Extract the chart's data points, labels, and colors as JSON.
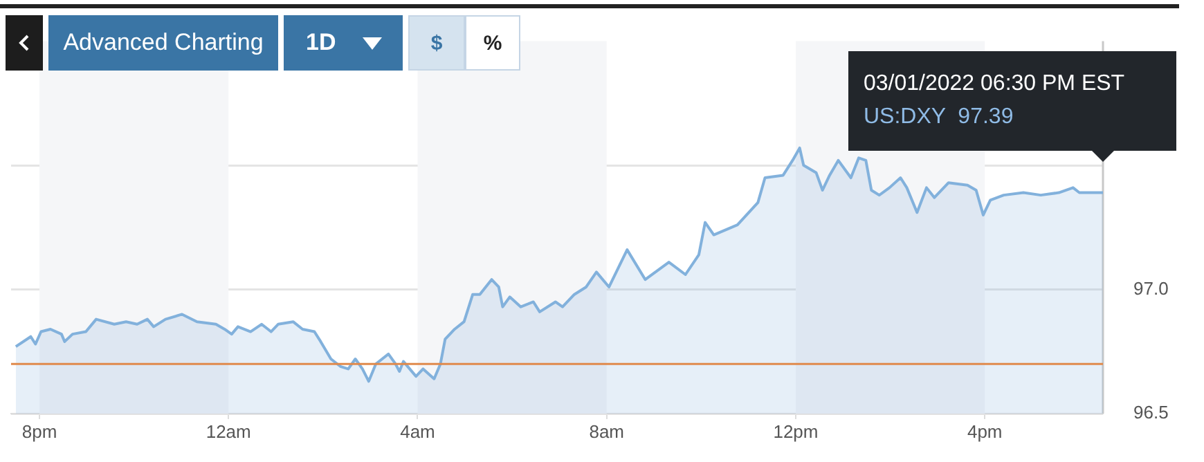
{
  "chart_data": {
    "type": "area",
    "x": [
      "2022-02-28T19:30",
      "2022-02-28T19:49",
      "2022-02-28T19:55",
      "2022-02-28T20:02",
      "2022-02-28T20:14",
      "2022-02-28T20:28",
      "2022-02-28T20:32",
      "2022-02-28T20:42",
      "2022-02-28T20:59",
      "2022-02-28T21:12",
      "2022-02-28T21:35",
      "2022-02-28T21:50",
      "2022-02-28T22:04",
      "2022-02-28T22:17",
      "2022-02-28T22:25",
      "2022-02-28T22:40",
      "2022-02-28T23:01",
      "2022-02-28T23:20",
      "2022-02-28T23:44",
      "2022-02-28T23:55",
      "2022-03-01T00:04",
      "2022-03-01T00:12",
      "2022-03-01T00:28",
      "2022-03-01T00:42",
      "2022-03-01T00:54",
      "2022-03-01T01:03",
      "2022-03-01T01:22",
      "2022-03-01T01:34",
      "2022-03-01T01:49",
      "2022-03-01T01:57",
      "2022-03-01T02:10",
      "2022-03-01T02:22",
      "2022-03-01T02:32",
      "2022-03-01T02:41",
      "2022-03-01T02:50",
      "2022-03-01T02:58",
      "2022-03-01T03:07",
      "2022-03-01T03:23",
      "2022-03-01T03:32",
      "2022-03-01T03:37",
      "2022-03-01T03:42",
      "2022-03-01T03:58",
      "2022-03-01T04:07",
      "2022-03-01T04:21",
      "2022-03-01T04:29",
      "2022-03-01T04:35",
      "2022-03-01T04:47",
      "2022-03-01T04:59",
      "2022-03-01T05:10",
      "2022-03-01T05:19",
      "2022-03-01T05:34",
      "2022-03-01T05:43",
      "2022-03-01T05:48",
      "2022-03-01T05:57",
      "2022-03-01T06:11",
      "2022-03-01T06:27",
      "2022-03-01T06:35",
      "2022-03-01T06:55",
      "2022-03-01T07:04",
      "2022-03-01T07:19",
      "2022-03-01T07:34",
      "2022-03-01T07:47",
      "2022-03-01T08:03",
      "2022-03-01T08:26",
      "2022-03-01T08:49",
      "2022-03-01T09:19",
      "2022-03-01T09:40",
      "2022-03-01T09:57",
      "2022-03-01T10:05",
      "2022-03-01T10:16",
      "2022-03-01T10:46",
      "2022-03-01T11:12",
      "2022-03-01T11:21",
      "2022-03-01T11:44",
      "2022-03-01T11:56",
      "2022-03-01T12:05",
      "2022-03-01T12:10",
      "2022-03-01T12:26",
      "2022-03-01T12:34",
      "2022-03-01T12:43",
      "2022-03-01T12:54",
      "2022-03-01T13:10",
      "2022-03-01T13:20",
      "2022-03-01T13:29",
      "2022-03-01T13:36",
      "2022-03-01T13:46",
      "2022-03-01T13:59",
      "2022-03-01T14:13",
      "2022-03-01T14:21",
      "2022-03-01T14:34",
      "2022-03-01T14:46",
      "2022-03-01T14:56",
      "2022-03-01T15:14",
      "2022-03-01T15:38",
      "2022-03-01T15:49",
      "2022-03-01T15:58",
      "2022-03-01T16:07",
      "2022-03-01T16:24",
      "2022-03-01T16:49",
      "2022-03-01T17:11",
      "2022-03-01T17:34",
      "2022-03-01T17:52",
      "2022-03-01T18:00",
      "2022-03-01T18:30"
    ],
    "series": [
      {
        "color": "#82b1dc",
        "values": [
          96.77,
          96.81,
          96.78,
          96.83,
          96.84,
          96.82,
          96.79,
          96.82,
          96.83,
          96.88,
          96.86,
          96.87,
          96.86,
          96.88,
          96.85,
          96.88,
          96.9,
          96.87,
          96.86,
          96.84,
          96.82,
          96.85,
          96.83,
          96.86,
          96.83,
          96.86,
          96.87,
          96.84,
          96.83,
          96.79,
          96.72,
          96.69,
          96.68,
          96.72,
          96.68,
          96.63,
          96.7,
          96.74,
          96.7,
          96.67,
          96.71,
          96.65,
          96.68,
          96.64,
          96.7,
          96.8,
          96.84,
          96.87,
          96.98,
          96.98,
          97.04,
          97.01,
          96.93,
          96.97,
          96.93,
          96.95,
          96.91,
          96.95,
          96.93,
          96.98,
          97.01,
          97.07,
          97.01,
          97.16,
          97.04,
          97.11,
          97.06,
          97.14,
          97.27,
          97.22,
          97.26,
          97.35,
          97.45,
          97.46,
          97.52,
          97.57,
          97.5,
          97.47,
          97.4,
          97.46,
          97.52,
          97.45,
          97.53,
          97.52,
          97.4,
          97.38,
          97.41,
          97.45,
          97.41,
          97.31,
          97.41,
          97.37,
          97.43,
          97.42,
          97.4,
          97.3,
          97.36,
          97.38,
          97.39,
          97.38,
          97.39,
          97.41,
          97.39,
          97.39
        ]
      }
    ],
    "xlim": [
      "2022-02-28T19:24",
      "2022-03-01T18:30"
    ],
    "xticks": [
      {
        "value": "2022-02-28T20:00",
        "label": "8pm"
      },
      {
        "value": "2022-03-01T00:00",
        "label": "12am"
      },
      {
        "value": "2022-03-01T04:00",
        "label": "4am"
      },
      {
        "value": "2022-03-01T08:00",
        "label": "8am"
      },
      {
        "value": "2022-03-01T12:00",
        "label": "12pm"
      },
      {
        "value": "2022-03-01T16:00",
        "label": "4pm"
      }
    ],
    "ylim": [
      96.5,
      98.0
    ],
    "yticks": [
      96.5,
      {
        "value": 97,
        "label": "97.0"
      },
      {
        "value": 97.5,
        "label": null
      }
    ],
    "grid": "y",
    "ref_lines": [
      {
        "axis": "y",
        "value": 96.7,
        "color": "#e08a4c"
      }
    ],
    "bands": [
      {
        "axis": "x",
        "from": "2022-02-28T20:00",
        "to": "2022-03-01T00:00",
        "color": "#f5f6f8"
      },
      {
        "axis": "x",
        "from": "2022-03-01T04:00",
        "to": "2022-03-01T08:00",
        "color": "#f5f6f8"
      },
      {
        "axis": "x",
        "from": "2022-03-01T12:00",
        "to": "2022-03-01T16:00",
        "color": "#f5f6f8"
      }
    ],
    "annotations": [
      "Advanced Charting",
      "1D",
      "$",
      "%",
      "03/01/2022 06:30 PM EST",
      "US:DXY  97.39"
    ]
  }
}
